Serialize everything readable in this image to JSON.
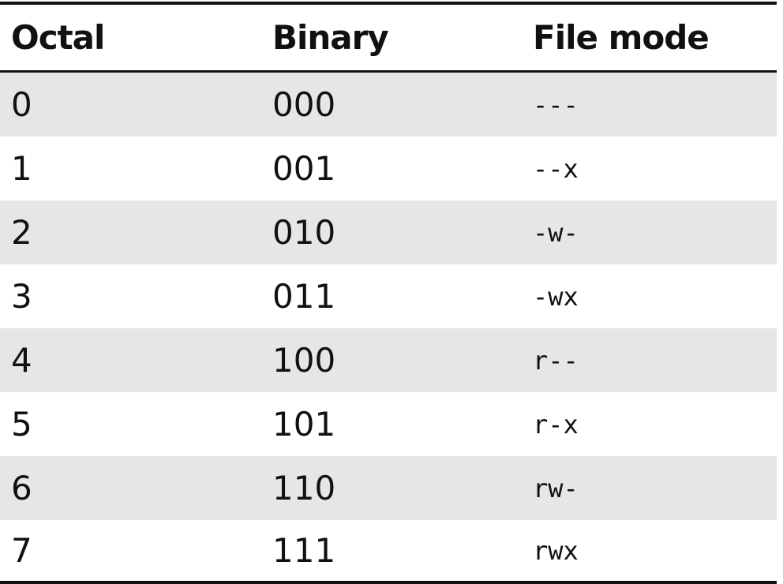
{
  "table": {
    "header": [
      "Octal",
      "Binary",
      "File mode"
    ],
    "rows": [
      [
        "0",
        "000",
        "---"
      ],
      [
        "1",
        "001",
        "--x"
      ],
      [
        "2",
        "010",
        "-w-"
      ],
      [
        "3",
        "011",
        "-wx"
      ],
      [
        "4",
        "100",
        "r--"
      ],
      [
        "5",
        "101",
        "r-x"
      ],
      [
        "6",
        "110",
        "rw-"
      ],
      [
        "7",
        "111",
        "rwx"
      ]
    ]
  }
}
